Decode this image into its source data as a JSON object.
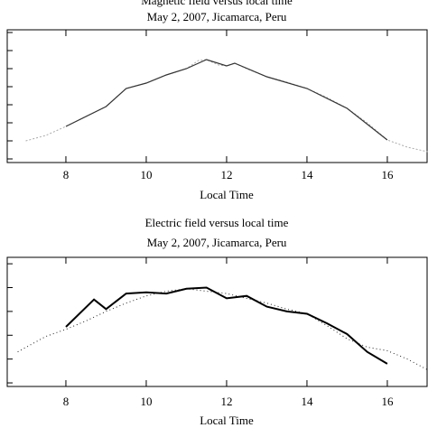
{
  "chart_data": [
    {
      "type": "line",
      "title": "Magnetic field versus local time",
      "subtitle": "May 2, 2007, Jicamarca, Peru",
      "xlabel": "Local Time",
      "xlim": [
        6.54,
        16.99
      ],
      "xticks": [
        8,
        10,
        12,
        14,
        16
      ],
      "ylim": [
        -0.2,
        7.15
      ],
      "yticks": [
        0,
        1,
        2,
        3,
        4,
        5,
        6,
        7
      ],
      "series": [
        {
          "color": "#aaaaaa",
          "dash": "2,2",
          "width": 1,
          "x": [
            7,
            7.5,
            8,
            8.5,
            9,
            9.5,
            10,
            10.5,
            11,
            11.3,
            11.5,
            11.8,
            12,
            12.2,
            12.5,
            13,
            13.5,
            14,
            14.5,
            15,
            15.5,
            16,
            16.5,
            17
          ],
          "values": [
            1.0,
            1.3,
            1.8,
            2.35,
            2.9,
            3.9,
            4.2,
            4.65,
            5.0,
            5.45,
            5.5,
            5.2,
            5.15,
            5.3,
            5.0,
            4.55,
            4.25,
            3.9,
            3.4,
            2.8,
            2.0,
            1.05,
            0.65,
            0.4
          ]
        },
        {
          "color": "#333333",
          "dash": "none",
          "width": 1.2,
          "x": [
            8,
            9,
            9.5,
            10,
            10.5,
            11,
            11.5,
            12,
            12.2,
            13,
            14,
            15,
            16
          ],
          "values": [
            1.8,
            2.9,
            3.9,
            4.2,
            4.65,
            5.0,
            5.5,
            5.15,
            5.3,
            4.55,
            3.9,
            2.8,
            1.05
          ]
        }
      ]
    },
    {
      "type": "line",
      "title": "Electric field versus local time",
      "subtitle": "May 2, 2007, Jicamarca, Peru",
      "xlabel": "Local Time",
      "xlim": [
        6.54,
        16.99
      ],
      "xticks": [
        8,
        10,
        12,
        14,
        16
      ],
      "ylim": [
        -0.15,
        5.27
      ],
      "yticks": [
        0,
        1,
        2,
        3,
        4,
        5
      ],
      "series": [
        {
          "color": "#222222",
          "dash": "1,3",
          "width": 1,
          "x": [
            6.8,
            7.5,
            8,
            8.5,
            9,
            9.5,
            10,
            10.5,
            11,
            11.5,
            12,
            12.5,
            13,
            13.5,
            14,
            14.5,
            15,
            15.5,
            16,
            16.5,
            17
          ],
          "values": [
            1.3,
            1.95,
            2.25,
            2.6,
            3.0,
            3.35,
            3.65,
            3.85,
            3.95,
            3.85,
            3.75,
            3.55,
            3.35,
            3.1,
            2.9,
            2.4,
            1.85,
            1.5,
            1.35,
            1.0,
            0.55
          ]
        },
        {
          "color": "#000000",
          "dash": "none",
          "width": 2,
          "x": [
            8,
            8.7,
            9,
            9.5,
            10,
            10.5,
            11,
            11.5,
            12,
            12.5,
            13,
            13.5,
            14,
            14.5,
            15,
            15.5,
            16
          ],
          "values": [
            2.35,
            3.5,
            3.1,
            3.75,
            3.8,
            3.75,
            3.95,
            4.0,
            3.55,
            3.65,
            3.2,
            3.0,
            2.9,
            2.5,
            2.05,
            1.3,
            0.8
          ]
        }
      ]
    }
  ]
}
